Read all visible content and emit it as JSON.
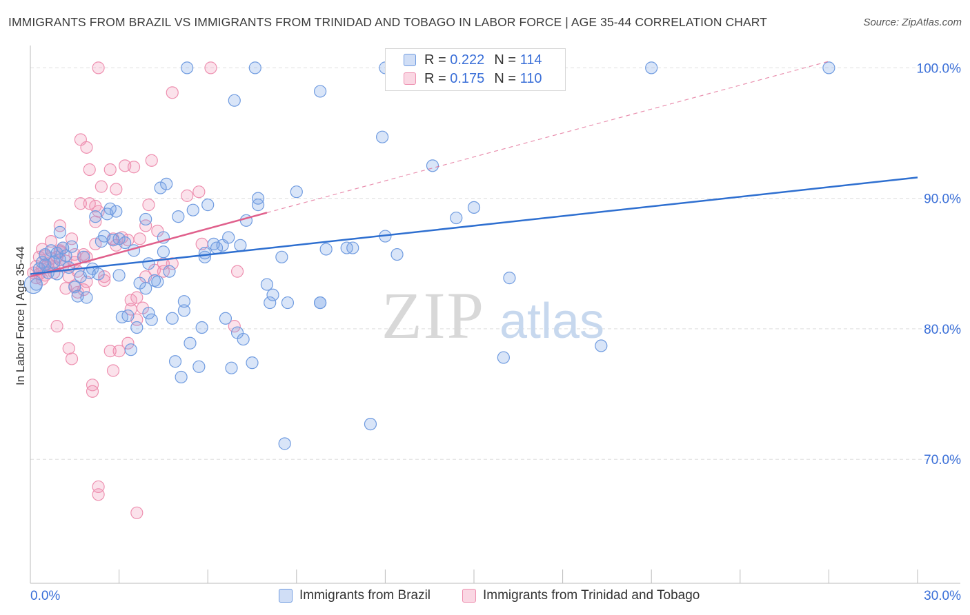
{
  "title": "IMMIGRANTS FROM BRAZIL VS IMMIGRANTS FROM TRINIDAD AND TOBAGO IN LABOR FORCE | AGE 35-44 CORRELATION CHART",
  "source": "Source: ZipAtlas.com",
  "watermark": {
    "zip": "ZIP",
    "atlas": "atlas"
  },
  "legend_top": [
    {
      "r_label": "R =",
      "r_value": "0.222",
      "n_label": "N =",
      "n_value": "114"
    },
    {
      "r_label": "R =",
      "r_value": "0.175",
      "n_label": "N =",
      "n_value": "110"
    }
  ],
  "legend_bottom": [
    "Immigrants from Brazil",
    "Immigrants from Trinidad and Tobago"
  ],
  "colors": {
    "brazil_fill": "rgba(120,160,230,0.28)",
    "brazil_stroke": "#6f9be0",
    "brazil_line": "#2e6fd0",
    "tt_fill": "rgba(240,140,175,0.25)",
    "tt_stroke": "#ee90b0",
    "tt_line": "#e0608c",
    "axis_text": "#3a6fd8",
    "grid": "#dedede"
  },
  "chart_data": {
    "type": "scatter",
    "title": "IMMIGRANTS FROM BRAZIL VS IMMIGRANTS FROM TRINIDAD AND TOBAGO IN LABOR FORCE | AGE 35-44 CORRELATION CHART",
    "xlabel": "",
    "ylabel": "In Labor Force | Age 35-44",
    "xlim": [
      0,
      30
    ],
    "ylim": [
      60.5,
      101.5
    ],
    "x_ticks": [
      0,
      3,
      6,
      9,
      12,
      15,
      18,
      21,
      24,
      27,
      30
    ],
    "x_tick_labels": {
      "left": "0.0%",
      "right": "30.0%"
    },
    "y_ticks": [
      70,
      80,
      90,
      100
    ],
    "y_tick_labels": [
      "70.0%",
      "80.0%",
      "90.0%",
      "100.0%"
    ],
    "series": [
      {
        "name": "Immigrants from Brazil",
        "r": 0.222,
        "n": 114,
        "trend": {
          "x": [
            0,
            30
          ],
          "y": [
            84.2,
            91.6
          ]
        },
        "points": [
          [
            0.2,
            83.4
          ],
          [
            0.3,
            84.6
          ],
          [
            0.4,
            85.1
          ],
          [
            0.5,
            84.9
          ],
          [
            0.5,
            85.7
          ],
          [
            0.6,
            84.3
          ],
          [
            0.7,
            86.0
          ],
          [
            0.8,
            85.1
          ],
          [
            0.9,
            85.8
          ],
          [
            0.9,
            84.2
          ],
          [
            1.0,
            85.3
          ],
          [
            1.0,
            87.4
          ],
          [
            1.1,
            86.2
          ],
          [
            1.2,
            85.6
          ],
          [
            1.3,
            84.7
          ],
          [
            1.4,
            86.3
          ],
          [
            1.5,
            83.2
          ],
          [
            1.6,
            82.5
          ],
          [
            1.7,
            84.0
          ],
          [
            1.8,
            85.5
          ],
          [
            1.9,
            82.4
          ],
          [
            2.0,
            84.3
          ],
          [
            2.1,
            84.6
          ],
          [
            2.2,
            88.6
          ],
          [
            2.3,
            84.2
          ],
          [
            2.4,
            86.7
          ],
          [
            2.5,
            87.1
          ],
          [
            2.6,
            88.8
          ],
          [
            2.7,
            89.2
          ],
          [
            2.8,
            86.8
          ],
          [
            2.9,
            89.0
          ],
          [
            3.0,
            86.9
          ],
          [
            3.0,
            84.1
          ],
          [
            3.1,
            80.9
          ],
          [
            3.2,
            86.6
          ],
          [
            3.3,
            81.0
          ],
          [
            3.4,
            78.4
          ],
          [
            3.5,
            86.0
          ],
          [
            3.6,
            80.1
          ],
          [
            3.7,
            83.5
          ],
          [
            3.9,
            88.4
          ],
          [
            3.9,
            83.1
          ],
          [
            4.0,
            85.0
          ],
          [
            4.0,
            81.2
          ],
          [
            4.1,
            80.7
          ],
          [
            4.2,
            83.7
          ],
          [
            4.3,
            83.6
          ],
          [
            4.4,
            90.8
          ],
          [
            4.5,
            87.0
          ],
          [
            4.5,
            85.9
          ],
          [
            4.6,
            91.1
          ],
          [
            4.7,
            84.4
          ],
          [
            4.8,
            80.8
          ],
          [
            4.9,
            77.5
          ],
          [
            5.0,
            88.6
          ],
          [
            5.1,
            76.3
          ],
          [
            5.2,
            81.4
          ],
          [
            5.2,
            82.1
          ],
          [
            5.4,
            78.9
          ],
          [
            5.5,
            89.1
          ],
          [
            5.7,
            77.1
          ],
          [
            5.8,
            80.1
          ],
          [
            5.9,
            85.5
          ],
          [
            5.9,
            85.8
          ],
          [
            6.0,
            89.5
          ],
          [
            6.2,
            86.5
          ],
          [
            6.3,
            86.2
          ],
          [
            6.5,
            86.4
          ],
          [
            6.6,
            80.8
          ],
          [
            6.7,
            87.0
          ],
          [
            6.8,
            77.0
          ],
          [
            6.9,
            97.5
          ],
          [
            7.0,
            79.7
          ],
          [
            7.1,
            86.4
          ],
          [
            7.2,
            79.2
          ],
          [
            7.3,
            88.3
          ],
          [
            7.5,
            77.4
          ],
          [
            7.7,
            89.5
          ],
          [
            7.7,
            90.0
          ],
          [
            8.0,
            83.4
          ],
          [
            8.1,
            82.0
          ],
          [
            8.2,
            82.6
          ],
          [
            8.5,
            85.5
          ],
          [
            8.6,
            71.2
          ],
          [
            8.7,
            82.0
          ],
          [
            9.0,
            90.5
          ],
          [
            9.8,
            82.0
          ],
          [
            9.8,
            82.0
          ],
          [
            9.8,
            98.2
          ],
          [
            10.0,
            86.1
          ],
          [
            10.7,
            86.2
          ],
          [
            10.9,
            86.2
          ],
          [
            11.5,
            72.7
          ],
          [
            11.9,
            94.7
          ],
          [
            12.0,
            87.1
          ],
          [
            12.4,
            85.7
          ],
          [
            13.6,
            92.5
          ],
          [
            14.4,
            88.5
          ],
          [
            15.0,
            89.3
          ],
          [
            16.0,
            77.8
          ],
          [
            16.2,
            83.9
          ],
          [
            19.3,
            78.7
          ],
          [
            5.3,
            100.0
          ],
          [
            7.6,
            100.0
          ],
          [
            21.0,
            100.0
          ],
          [
            27.0,
            100.0
          ],
          [
            12.0,
            100.0
          ]
        ]
      },
      {
        "name": "Immigrants from Trinidad and Tobago",
        "r": 0.175,
        "n": 110,
        "trend": {
          "x": [
            0,
            8.0
          ],
          "y": [
            84.0,
            88.9
          ]
        },
        "trend_dashed": {
          "x": [
            8.0,
            27.0
          ],
          "y": [
            88.9,
            100.5
          ]
        },
        "points": [
          [
            0.1,
            84.3
          ],
          [
            0.2,
            83.9
          ],
          [
            0.2,
            84.8
          ],
          [
            0.3,
            84.2
          ],
          [
            0.3,
            85.5
          ],
          [
            0.4,
            84.6
          ],
          [
            0.4,
            83.8
          ],
          [
            0.5,
            85.6
          ],
          [
            0.5,
            84.1
          ],
          [
            0.6,
            85.0
          ],
          [
            0.6,
            84.7
          ],
          [
            0.7,
            86.7
          ],
          [
            0.7,
            85.4
          ],
          [
            0.8,
            84.3
          ],
          [
            0.9,
            85.5
          ],
          [
            0.9,
            80.2
          ],
          [
            1.0,
            87.9
          ],
          [
            1.0,
            85.9
          ],
          [
            1.1,
            84.8
          ],
          [
            1.1,
            86.2
          ],
          [
            1.2,
            83.1
          ],
          [
            1.3,
            84.0
          ],
          [
            1.3,
            78.5
          ],
          [
            1.4,
            77.7
          ],
          [
            1.4,
            86.9
          ],
          [
            1.5,
            85.1
          ],
          [
            1.5,
            83.3
          ],
          [
            1.6,
            82.8
          ],
          [
            1.6,
            84.4
          ],
          [
            1.7,
            89.6
          ],
          [
            1.7,
            94.5
          ],
          [
            1.8,
            85.7
          ],
          [
            1.8,
            83.0
          ],
          [
            1.9,
            85.5
          ],
          [
            1.9,
            93.9
          ],
          [
            2.0,
            89.6
          ],
          [
            2.0,
            92.2
          ],
          [
            2.1,
            75.2
          ],
          [
            2.1,
            75.7
          ],
          [
            2.2,
            86.5
          ],
          [
            2.2,
            89.4
          ],
          [
            2.2,
            88.2
          ],
          [
            2.3,
            89.0
          ],
          [
            2.4,
            90.9
          ],
          [
            2.5,
            84.0
          ],
          [
            2.5,
            83.7
          ],
          [
            2.7,
            78.3
          ],
          [
            2.7,
            92.2
          ],
          [
            2.8,
            76.8
          ],
          [
            2.9,
            86.4
          ],
          [
            2.9,
            90.7
          ],
          [
            3.0,
            78.3
          ],
          [
            3.1,
            87.0
          ],
          [
            3.2,
            92.5
          ],
          [
            3.3,
            78.9
          ],
          [
            3.4,
            82.2
          ],
          [
            3.4,
            81.5
          ],
          [
            3.5,
            92.4
          ],
          [
            3.6,
            82.4
          ],
          [
            3.6,
            80.7
          ],
          [
            3.7,
            86.9
          ],
          [
            3.8,
            81.6
          ],
          [
            3.9,
            84.0
          ],
          [
            3.9,
            87.9
          ],
          [
            4.0,
            89.5
          ],
          [
            4.1,
            92.9
          ],
          [
            4.2,
            84.5
          ],
          [
            4.3,
            87.5
          ],
          [
            4.5,
            85.0
          ],
          [
            4.5,
            84.4
          ],
          [
            4.8,
            85.0
          ],
          [
            5.3,
            90.2
          ],
          [
            5.7,
            90.5
          ],
          [
            5.8,
            86.5
          ],
          [
            6.9,
            80.2
          ],
          [
            7.0,
            84.4
          ],
          [
            2.3,
            67.3
          ],
          [
            2.3,
            67.9
          ],
          [
            3.6,
            65.9
          ],
          [
            2.3,
            100.0
          ],
          [
            6.1,
            100.0
          ],
          [
            4.8,
            98.1
          ],
          [
            1.0,
            86.0
          ],
          [
            1.5,
            85.7
          ],
          [
            2.8,
            86.9
          ],
          [
            3.3,
            86.8
          ],
          [
            0.8,
            84.8
          ],
          [
            1.2,
            85.2
          ],
          [
            1.9,
            83.6
          ],
          [
            0.4,
            86.1
          ]
        ]
      }
    ]
  }
}
